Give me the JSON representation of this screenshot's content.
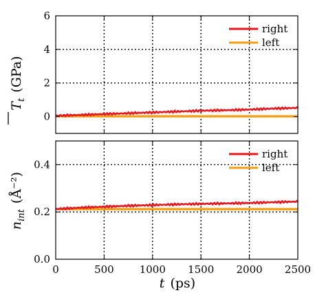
{
  "chart_data": [
    {
      "type": "line",
      "panel": "top",
      "ylabel_main": "T",
      "ylabel_sub": "t",
      "ylabel_unit": "(GPa)",
      "xlim": [
        0,
        2500
      ],
      "ylim": [
        -1,
        6
      ],
      "xticks": [
        0,
        500,
        1000,
        1500,
        2000,
        2500
      ],
      "yticks": [
        0,
        2,
        4,
        6
      ],
      "ytick_labels": [
        "0",
        "2",
        "4",
        "6"
      ],
      "grid": true,
      "legend_position": "top-right",
      "series": [
        {
          "name": "right",
          "color": "#e8141c",
          "x": [
            0,
            250,
            500,
            750,
            1000,
            1250,
            1500,
            1750,
            2000,
            2250,
            2500
          ],
          "y": [
            0.05,
            0.1,
            0.15,
            0.2,
            0.25,
            0.3,
            0.35,
            0.38,
            0.42,
            0.48,
            0.52
          ]
        },
        {
          "name": "left",
          "color": "#f39c12",
          "x": [
            0,
            500,
            1000,
            1500,
            2000,
            2500
          ],
          "y": [
            0.02,
            0.02,
            0.02,
            0.02,
            0.02,
            0.02
          ]
        }
      ]
    },
    {
      "type": "line",
      "panel": "bottom",
      "ylabel_main": "n",
      "ylabel_sub": "int",
      "ylabel_unit": "(Å⁻²)",
      "xlabel_main": "t",
      "xlabel_unit": "(ps)",
      "xlim": [
        0,
        2500
      ],
      "ylim": [
        0,
        0.5
      ],
      "xticks": [
        0,
        500,
        1000,
        1500,
        2000,
        2500
      ],
      "xtick_labels": [
        "0",
        "500",
        "1000",
        "1500",
        "2000",
        "2500"
      ],
      "yticks": [
        0,
        0.2,
        0.4
      ],
      "ytick_labels": [
        "0.0",
        "0.2",
        "0.4"
      ],
      "grid": true,
      "legend_position": "top-right",
      "series": [
        {
          "name": "right",
          "color": "#e8141c",
          "x": [
            0,
            250,
            500,
            750,
            1000,
            1250,
            1500,
            1750,
            2000,
            2250,
            2500
          ],
          "y": [
            0.212,
            0.218,
            0.222,
            0.226,
            0.229,
            0.232,
            0.234,
            0.236,
            0.238,
            0.241,
            0.244
          ]
        },
        {
          "name": "left",
          "color": "#f39c12",
          "x": [
            0,
            500,
            1000,
            1500,
            2000,
            2500
          ],
          "y": [
            0.212,
            0.212,
            0.212,
            0.212,
            0.212,
            0.212
          ]
        }
      ]
    }
  ]
}
